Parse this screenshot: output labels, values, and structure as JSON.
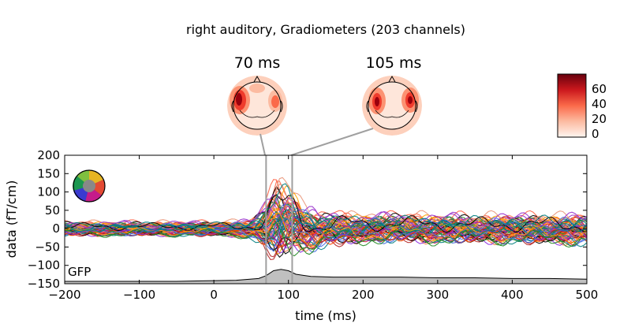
{
  "figure": {
    "title": "right auditory, Gradiometers (203 channels)",
    "topomaps": [
      {
        "label": "70 ms",
        "time_ms": 70
      },
      {
        "label": "105 ms",
        "time_ms": 105
      }
    ],
    "colorbar": {
      "ticks": [
        "0",
        "20",
        "40",
        "60"
      ],
      "range": [
        0,
        75
      ],
      "cmap": "Reds"
    },
    "gfp_label": "GFP",
    "sensor_legend": "sensor-position-legend"
  },
  "chart_data": {
    "type": "line",
    "title": "right auditory, Gradiometers (203 channels)",
    "xlabel": "time (ms)",
    "ylabel": "data (fT/cm)",
    "xlim": [
      -200,
      500
    ],
    "ylim": [
      -150,
      200
    ],
    "xticks": [
      "−200",
      "−100",
      "0",
      "100",
      "200",
      "300",
      "400",
      "500"
    ],
    "yticks": [
      "−150",
      "−100",
      "−50",
      "0",
      "50",
      "100",
      "150",
      "200"
    ],
    "xtick_values": [
      -200,
      -100,
      0,
      100,
      200,
      300,
      400,
      500
    ],
    "ytick_values": [
      -150,
      -100,
      -50,
      0,
      50,
      100,
      150,
      200
    ],
    "grid": false,
    "time_markers_ms": [
      70,
      105
    ],
    "n_channels": 203,
    "gfp": {
      "label": "GFP",
      "x": [
        -200,
        -150,
        -100,
        -50,
        0,
        30,
        60,
        70,
        80,
        90,
        100,
        110,
        130,
        160,
        200,
        250,
        300,
        350,
        400,
        450,
        500
      ],
      "y_rel": [
        0.0,
        0.0,
        0.0,
        0.0,
        0.05,
        0.08,
        0.2,
        0.4,
        0.75,
        0.85,
        0.75,
        0.5,
        0.35,
        0.3,
        0.3,
        0.3,
        0.25,
        0.25,
        0.2,
        0.2,
        0.15
      ]
    },
    "series_envelope": {
      "x": [
        -200,
        -100,
        0,
        50,
        70,
        85,
        100,
        110,
        120,
        140,
        160,
        200,
        250,
        300,
        400,
        500
      ],
      "max": [
        20,
        20,
        20,
        25,
        80,
        155,
        140,
        110,
        70,
        40,
        50,
        40,
        45,
        40,
        40,
        40
      ],
      "min": [
        -20,
        -20,
        -20,
        -25,
        -60,
        -80,
        -60,
        -60,
        -65,
        -55,
        -45,
        -40,
        -35,
        -40,
        -40,
        -45
      ]
    },
    "colors": [
      "#006d6d",
      "#008080",
      "#1f7f5f",
      "#ff6347",
      "#ff4500",
      "#ff7f50",
      "#e9967a",
      "#ffa500",
      "#dc143c",
      "#c71585",
      "#9932cc",
      "#8a2be2",
      "#4169e1",
      "#000000",
      "#228b22",
      "#b22222"
    ]
  }
}
